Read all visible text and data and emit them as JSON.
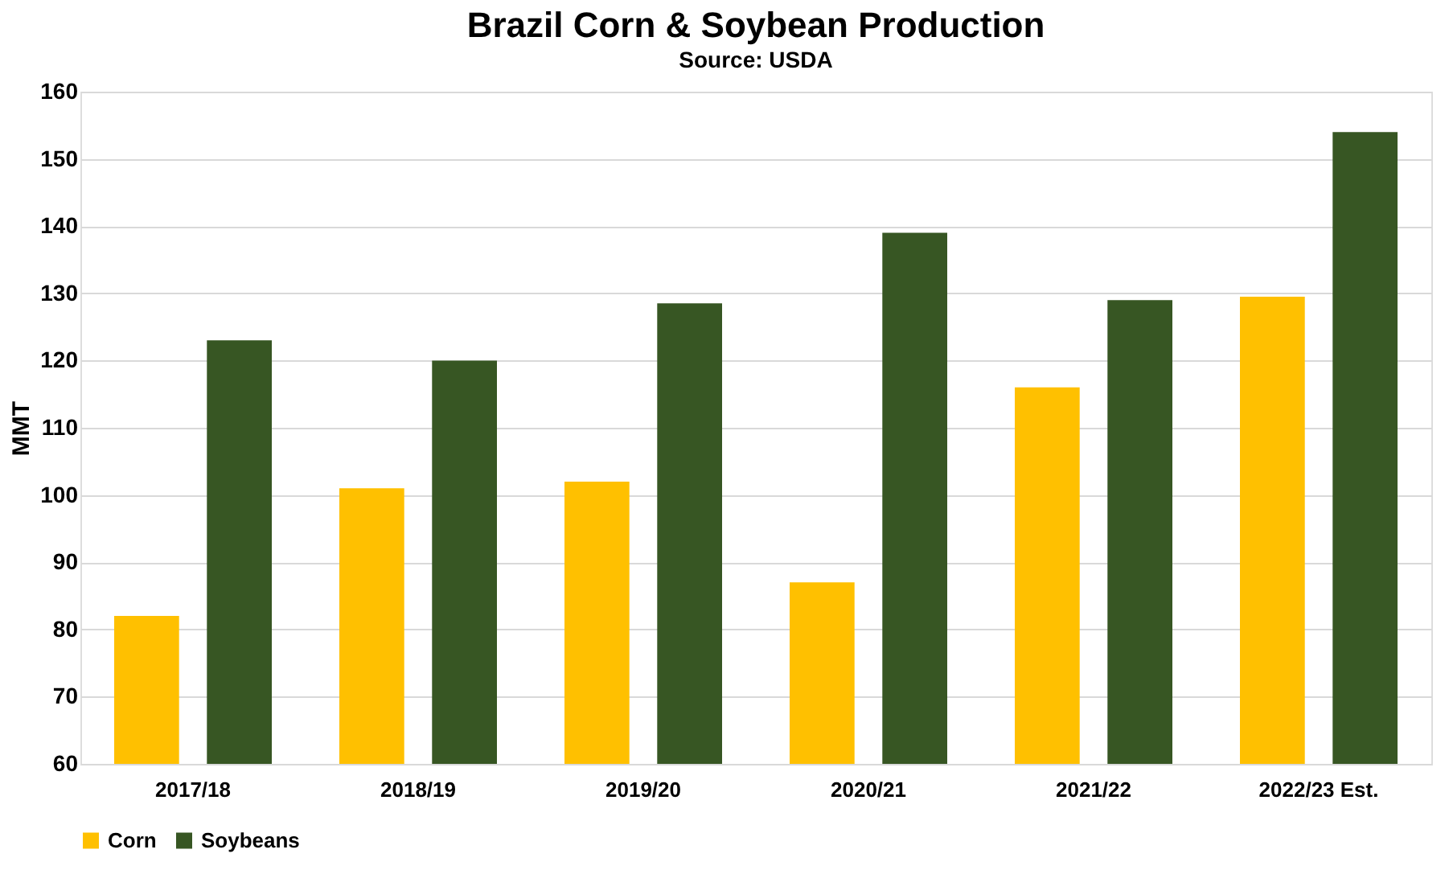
{
  "chart_data": {
    "type": "bar",
    "title": "Brazil Corn & Soybean Production",
    "subtitle": "Source: USDA",
    "ylabel": "MMT",
    "categories": [
      "2017/18",
      "2018/19",
      "2019/20",
      "2020/21",
      "2021/22",
      "2022/23 Est."
    ],
    "series": [
      {
        "name": "Corn",
        "color": "#ffc000",
        "values": [
          82,
          101,
          102,
          87,
          116,
          129.5
        ]
      },
      {
        "name": "Soybeans",
        "color": "#375623",
        "values": [
          123,
          120,
          128.5,
          139,
          129,
          154
        ]
      }
    ],
    "ylim": [
      60,
      160
    ],
    "yticks": [
      60,
      70,
      80,
      90,
      100,
      110,
      120,
      130,
      140,
      150,
      160
    ],
    "grid": "y",
    "legend": "bottom"
  }
}
